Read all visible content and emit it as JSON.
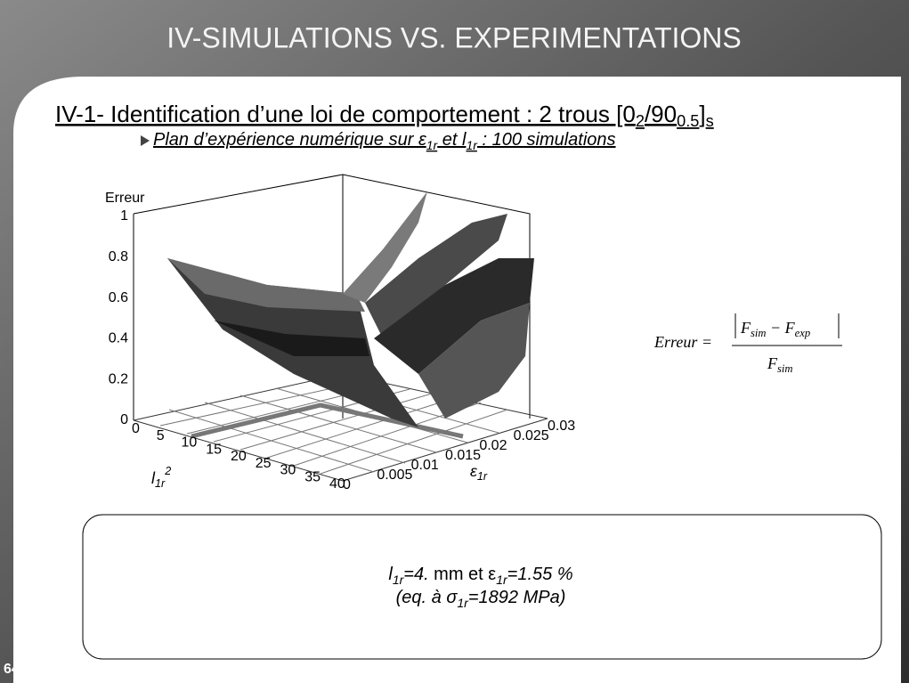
{
  "header": {
    "title": "IV-SIMULATIONS VS. EXPERIMENTATIONS"
  },
  "section": {
    "title_parts": [
      "IV-1- Identification d’une loi de comportement : 2 trous [0",
      "2",
      "/90",
      "0.5",
      "]",
      "s"
    ]
  },
  "subtitle": {
    "parts": [
      "Plan d’expérience numérique sur ε",
      "1r",
      " et l",
      "1r",
      " : 100 simulations"
    ]
  },
  "plot": {
    "z_label": "Erreur",
    "z_ticks": [
      "0",
      "0.2",
      "0.4",
      "0.6",
      "0.8",
      "1"
    ],
    "x_ticks": [
      "0",
      "5",
      "10",
      "15",
      "20",
      "25",
      "30",
      "35",
      "40"
    ],
    "x_label_parts": [
      "l",
      "1r",
      "2"
    ],
    "y_ticks": [
      "0",
      "0.005",
      "0.01",
      "0.015",
      "0.02",
      "0.025",
      "0.03"
    ],
    "y_label_parts": [
      "ε",
      "1r"
    ]
  },
  "formula": {
    "lhs": "Erreur =",
    "num_parts": [
      "F",
      "sim",
      " − F",
      "exp"
    ],
    "den_parts": [
      "F",
      "sim"
    ]
  },
  "result": {
    "line1_parts": [
      "l",
      "1r",
      "=4.",
      " mm et ε",
      "1r",
      "=1.55 %"
    ],
    "line2_parts": [
      "(eq. à σ",
      "1r",
      "=1892 MPa)"
    ]
  },
  "page_number": "64"
}
